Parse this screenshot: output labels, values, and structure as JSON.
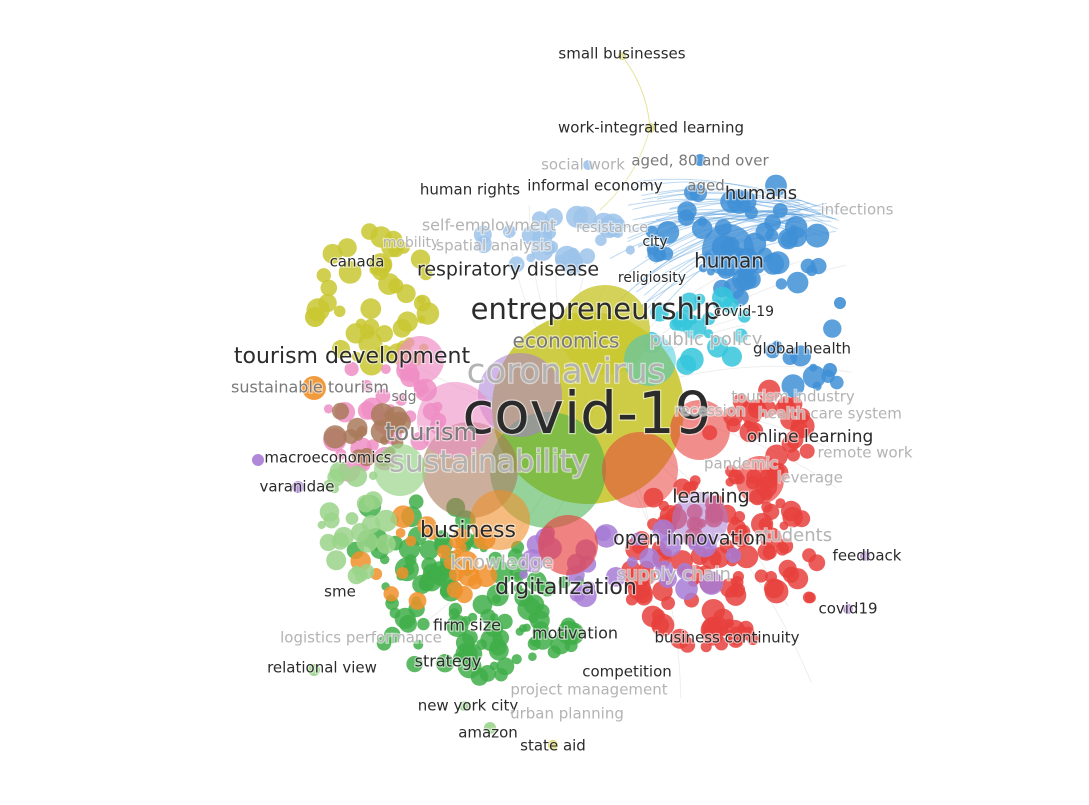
{
  "network": {
    "clusters": {
      "red": "#e8413d",
      "green": "#3fae49",
      "blue": "#3f8fd6",
      "yellow": "#c9c730",
      "purple": "#a77bd6",
      "orange": "#f0902a",
      "cyan": "#35c5dc",
      "brown": "#a97a5a",
      "pink": "#ef8ec4",
      "lightgreen": "#9ad48a",
      "lightblue": "#9cc3ea"
    },
    "labels": [
      {
        "text": "small businesses",
        "emphasis": "normal",
        "size": 15
      },
      {
        "text": "work-integrated learning",
        "emphasis": "normal",
        "size": 15
      },
      {
        "text": "social work",
        "emphasis": "faded",
        "size": 15
      },
      {
        "text": "aged, 80 and over",
        "emphasis": "mid",
        "size": 15
      },
      {
        "text": "human rights",
        "emphasis": "normal",
        "size": 15
      },
      {
        "text": "informal economy",
        "emphasis": "normal",
        "size": 15
      },
      {
        "text": "aged",
        "emphasis": "mid",
        "size": 15
      },
      {
        "text": "humans",
        "emphasis": "normal",
        "size": 18
      },
      {
        "text": "infections",
        "emphasis": "faded",
        "size": 15
      },
      {
        "text": "self-employment",
        "emphasis": "faded",
        "size": 16
      },
      {
        "text": "resistance",
        "emphasis": "faded",
        "size": 14
      },
      {
        "text": "mobility",
        "emphasis": "faded",
        "size": 14
      },
      {
        "text": "spatial analysis",
        "emphasis": "faded",
        "size": 15
      },
      {
        "text": "city",
        "emphasis": "normal",
        "size": 14
      },
      {
        "text": "human",
        "emphasis": "normal",
        "size": 20
      },
      {
        "text": "canada",
        "emphasis": "normal",
        "size": 15
      },
      {
        "text": "respiratory disease",
        "emphasis": "normal",
        "size": 19
      },
      {
        "text": "religiosity",
        "emphasis": "normal",
        "size": 14
      },
      {
        "text": "entrepreneurship",
        "emphasis": "normal",
        "size": 29
      },
      {
        "text": "covid-19",
        "emphasis": "normal",
        "size": 14
      },
      {
        "text": "economics",
        "emphasis": "mid",
        "size": 20
      },
      {
        "text": "public policy",
        "emphasis": "faded",
        "size": 18
      },
      {
        "text": "global health",
        "emphasis": "normal",
        "size": 15
      },
      {
        "text": "tourism development",
        "emphasis": "normal",
        "size": 22
      },
      {
        "text": "coronavirus",
        "emphasis": "faded",
        "size": 34
      },
      {
        "text": "sustainable tourism",
        "emphasis": "mid",
        "size": 16
      },
      {
        "text": "sdg",
        "emphasis": "mid",
        "size": 14
      },
      {
        "text": "tourism industry",
        "emphasis": "faded",
        "size": 15
      },
      {
        "text": "health care system",
        "emphasis": "faded",
        "size": 15
      },
      {
        "text": "covid-19",
        "emphasis": "normal",
        "size": 58
      },
      {
        "text": "tourism",
        "emphasis": "mid",
        "size": 24
      },
      {
        "text": "recession",
        "emphasis": "faded",
        "size": 15
      },
      {
        "text": "online learning",
        "emphasis": "normal",
        "size": 17
      },
      {
        "text": "pandemic",
        "emphasis": "faded",
        "size": 15
      },
      {
        "text": "macroeconomics",
        "emphasis": "normal",
        "size": 15
      },
      {
        "text": "sustainability",
        "emphasis": "faded",
        "size": 30
      },
      {
        "text": "remote work",
        "emphasis": "faded",
        "size": 15
      },
      {
        "text": "varanidae",
        "emphasis": "normal",
        "size": 15
      },
      {
        "text": "leverage",
        "emphasis": "faded",
        "size": 15
      },
      {
        "text": "learning",
        "emphasis": "normal",
        "size": 19
      },
      {
        "text": "business",
        "emphasis": "normal",
        "size": 22
      },
      {
        "text": "students",
        "emphasis": "faded",
        "size": 18
      },
      {
        "text": "open innovation",
        "emphasis": "normal",
        "size": 19
      },
      {
        "text": "feedback",
        "emphasis": "normal",
        "size": 15
      },
      {
        "text": "knowledge",
        "emphasis": "faded",
        "size": 19
      },
      {
        "text": "supply chain",
        "emphasis": "faded",
        "size": 18
      },
      {
        "text": "digitalization",
        "emphasis": "normal",
        "size": 22
      },
      {
        "text": "sme",
        "emphasis": "normal",
        "size": 15
      },
      {
        "text": "covid19",
        "emphasis": "normal",
        "size": 15
      },
      {
        "text": "firm size",
        "emphasis": "normal",
        "size": 16
      },
      {
        "text": "motivation",
        "emphasis": "normal",
        "size": 16
      },
      {
        "text": "logistics performance",
        "emphasis": "faded",
        "size": 15
      },
      {
        "text": "business continuity",
        "emphasis": "normal",
        "size": 15
      },
      {
        "text": "relational view",
        "emphasis": "normal",
        "size": 15
      },
      {
        "text": "strategy",
        "emphasis": "normal",
        "size": 16
      },
      {
        "text": "competition",
        "emphasis": "normal",
        "size": 15
      },
      {
        "text": "project management",
        "emphasis": "faded",
        "size": 15
      },
      {
        "text": "new york city",
        "emphasis": "normal",
        "size": 15
      },
      {
        "text": "urban planning",
        "emphasis": "faded",
        "size": 15
      },
      {
        "text": "amazon",
        "emphasis": "normal",
        "size": 15
      },
      {
        "text": "state aid",
        "emphasis": "normal",
        "size": 15
      }
    ]
  }
}
